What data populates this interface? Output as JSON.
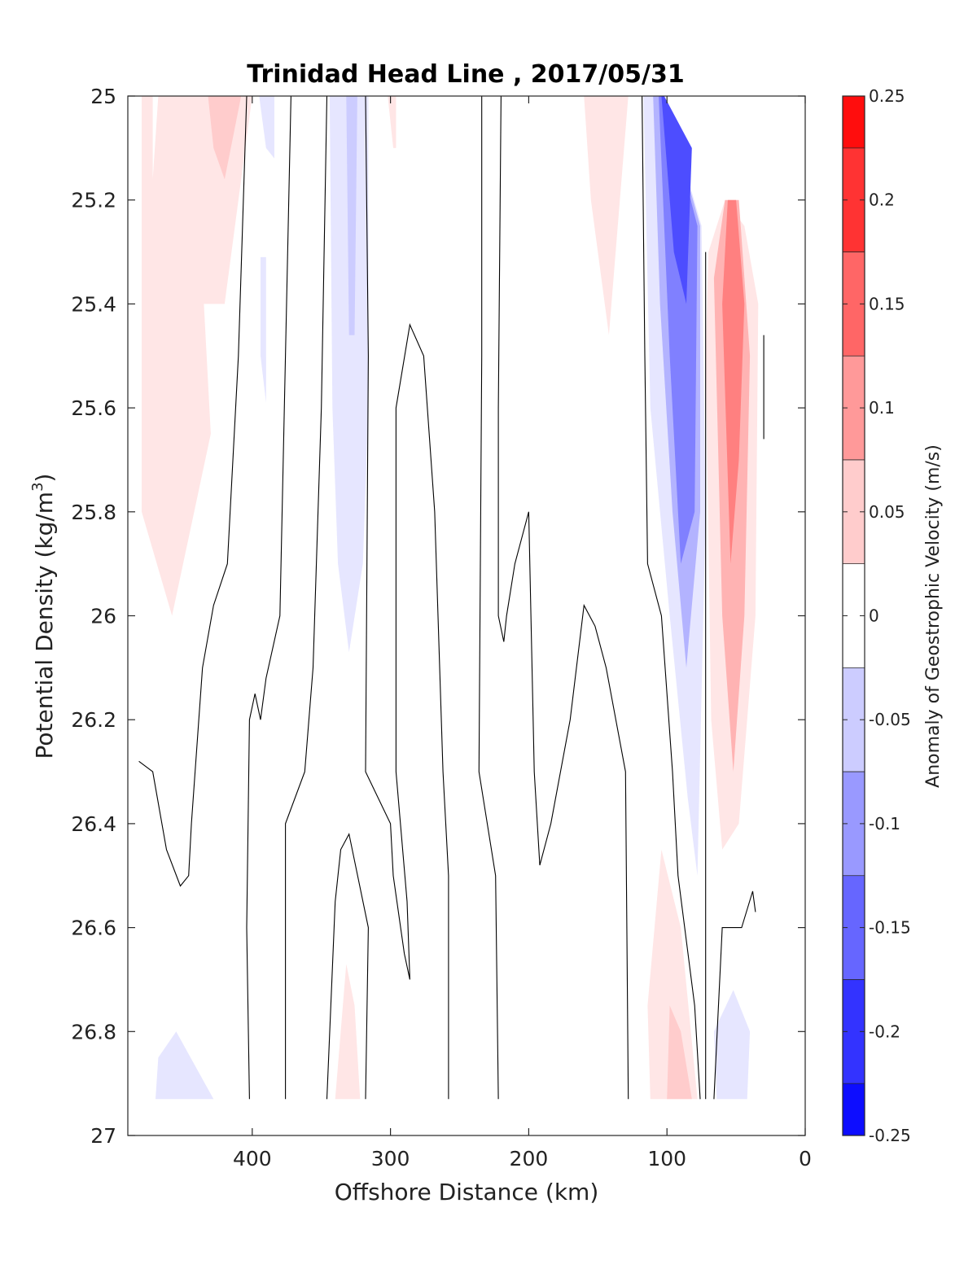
{
  "chart_data": {
    "type": "contour",
    "title": "Trinidad Head Line , 2017/05/31",
    "xlabel": "Offshore Distance (km)",
    "ylabel_main": "Potential Density (kg/m",
    "ylabel_sup": "3",
    "ylabel_close": ")",
    "colorbar_label": "Anomaly of Geostrophic Velocity (m/s)",
    "xlim": [
      490,
      0
    ],
    "ylim": [
      25,
      27
    ],
    "y_reversed": true,
    "x_ticks": [
      400,
      300,
      200,
      100,
      0
    ],
    "y_ticks": [
      25,
      25.2,
      25.4,
      25.6,
      25.8,
      26,
      26.2,
      26.4,
      26.6,
      26.8,
      27
    ],
    "colorbar_range": [
      -0.25,
      0.25
    ],
    "colorbar_levels": [
      -0.25,
      -0.225,
      -0.175,
      -0.125,
      -0.075,
      -0.025,
      0.025,
      0.075,
      0.125,
      0.175,
      0.225,
      0.25
    ],
    "colorbar_ticks": [
      0.25,
      0.2,
      0.15,
      0.1,
      0.05,
      0,
      -0.05,
      -0.1,
      -0.15,
      -0.2,
      -0.25
    ],
    "colors": {
      "positive": "#ff0000",
      "negative": "#0000ff",
      "zero": "#ffffff",
      "contour_line": "#000000"
    },
    "filled_regions": [
      {
        "value": 0.025,
        "points": [
          [
            480,
            25
          ],
          [
            472,
            25
          ],
          [
            472,
            25.16
          ],
          [
            468,
            25
          ],
          [
            400,
            25
          ],
          [
            420,
            25.4
          ],
          [
            435,
            25.4
          ],
          [
            430,
            25.65
          ],
          [
            458,
            26.0
          ],
          [
            480,
            25.8
          ]
        ]
      },
      {
        "value": 0.05,
        "points": [
          [
            432,
            25
          ],
          [
            408,
            25
          ],
          [
            420,
            25.16
          ],
          [
            428,
            25.1
          ]
        ]
      },
      {
        "value": -0.025,
        "points": [
          [
            395,
            25
          ],
          [
            384,
            25
          ],
          [
            384,
            25.12
          ],
          [
            390,
            25.1
          ]
        ]
      },
      {
        "value": -0.025,
        "points": [
          [
            394,
            25.31
          ],
          [
            390,
            25.31
          ],
          [
            390,
            25.59
          ],
          [
            394,
            25.5
          ]
        ]
      },
      {
        "value": -0.025,
        "points": [
          [
            344,
            25
          ],
          [
            316,
            25
          ],
          [
            316,
            25.6
          ],
          [
            320,
            25.9
          ],
          [
            330,
            26.07
          ],
          [
            338,
            25.9
          ],
          [
            342,
            25.6
          ]
        ]
      },
      {
        "value": -0.05,
        "points": [
          [
            332,
            25
          ],
          [
            324,
            25
          ],
          [
            326,
            25.46
          ],
          [
            330,
            25.46
          ]
        ]
      },
      {
        "value": 0.025,
        "points": [
          [
            302,
            25
          ],
          [
            296,
            25
          ],
          [
            296,
            25.1
          ],
          [
            298,
            25.1
          ]
        ]
      },
      {
        "value": 0.025,
        "points": [
          [
            160,
            25
          ],
          [
            128,
            25
          ],
          [
            142,
            25.46
          ],
          [
            150,
            25.3
          ],
          [
            155,
            25.2
          ]
        ]
      },
      {
        "value": 0.025,
        "points": [
          [
            44,
            25.25
          ],
          [
            58,
            25.2
          ],
          [
            70,
            25.3
          ],
          [
            72,
            25.5
          ],
          [
            68,
            26.2
          ],
          [
            60,
            26.45
          ],
          [
            48,
            26.4
          ],
          [
            36,
            26.0
          ],
          [
            34,
            25.4
          ]
        ]
      },
      {
        "value": 0.075,
        "points": [
          [
            48,
            25.2
          ],
          [
            58,
            25.2
          ],
          [
            66,
            25.35
          ],
          [
            60,
            26.0
          ],
          [
            52,
            26.3
          ],
          [
            44,
            26.0
          ],
          [
            40,
            25.5
          ]
        ]
      },
      {
        "value": 0.125,
        "points": [
          [
            50,
            25.2
          ],
          [
            56,
            25.2
          ],
          [
            60,
            25.4
          ],
          [
            54,
            25.9
          ],
          [
            48,
            25.7
          ],
          [
            44,
            25.4
          ]
        ]
      },
      {
        "value": -0.025,
        "points": [
          [
            117,
            25
          ],
          [
            102,
            25
          ],
          [
            75,
            25.25
          ],
          [
            72,
            25.8
          ],
          [
            78,
            26.5
          ],
          [
            85,
            26.35
          ],
          [
            98,
            26.0
          ],
          [
            112,
            25.6
          ]
        ]
      },
      {
        "value": -0.075,
        "points": [
          [
            110,
            25
          ],
          [
            102,
            25
          ],
          [
            76,
            25.25
          ],
          [
            76,
            25.8
          ],
          [
            86,
            26.1
          ],
          [
            96,
            25.8
          ],
          [
            105,
            25.4
          ]
        ]
      },
      {
        "value": -0.125,
        "points": [
          [
            106,
            25
          ],
          [
            102,
            25
          ],
          [
            78,
            25.25
          ],
          [
            80,
            25.8
          ],
          [
            90,
            25.9
          ],
          [
            98,
            25.5
          ]
        ]
      },
      {
        "value": -0.175,
        "points": [
          [
            104,
            25
          ],
          [
            102,
            25
          ],
          [
            82,
            25.1
          ],
          [
            86,
            25.4
          ],
          [
            95,
            25.3
          ]
        ]
      },
      {
        "value": 0.025,
        "points": [
          [
            112,
            26.93
          ],
          [
            78,
            26.93
          ],
          [
            90,
            26.6
          ],
          [
            104,
            26.45
          ],
          [
            114,
            26.75
          ]
        ]
      },
      {
        "value": 0.05,
        "points": [
          [
            100,
            26.93
          ],
          [
            82,
            26.93
          ],
          [
            90,
            26.8
          ],
          [
            98,
            26.75
          ]
        ]
      },
      {
        "value": 0.025,
        "points": [
          [
            340,
            26.93
          ],
          [
            322,
            26.93
          ],
          [
            326,
            26.75
          ],
          [
            332,
            26.67
          ]
        ]
      },
      {
        "value": -0.025,
        "points": [
          [
            470,
            26.93
          ],
          [
            428,
            26.93
          ],
          [
            455,
            26.8
          ],
          [
            468,
            26.85
          ]
        ]
      },
      {
        "value": -0.025,
        "points": [
          [
            64,
            26.93
          ],
          [
            42,
            26.93
          ],
          [
            40,
            26.8
          ],
          [
            52,
            26.72
          ],
          [
            66,
            26.8
          ]
        ]
      }
    ],
    "contour_lines": [
      [
        [
          482,
          26.28
        ],
        [
          472,
          26.3
        ],
        [
          462,
          26.45
        ],
        [
          452,
          26.52
        ],
        [
          446,
          26.5
        ],
        [
          444,
          26.4
        ],
        [
          436,
          26.1
        ],
        [
          428,
          25.98
        ],
        [
          418,
          25.9
        ],
        [
          410,
          25.5
        ],
        [
          404,
          25
        ]
      ],
      [
        [
          402,
          26.93
        ],
        [
          404,
          26.6
        ],
        [
          402,
          26.2
        ],
        [
          398,
          26.15
        ],
        [
          394,
          26.2
        ],
        [
          390,
          26.12
        ],
        [
          380,
          26.0
        ],
        [
          376,
          25.5
        ],
        [
          372,
          25
        ]
      ],
      [
        [
          376,
          26.93
        ],
        [
          376,
          26.8
        ],
        [
          376,
          26.4
        ],
        [
          362,
          26.3
        ],
        [
          356,
          26.1
        ],
        [
          350,
          25.6
        ],
        [
          346,
          25
        ]
      ],
      [
        [
          318,
          26.93
        ],
        [
          316,
          26.6
        ],
        [
          330,
          26.42
        ],
        [
          336,
          26.45
        ],
        [
          340,
          26.55
        ],
        [
          346,
          26.93
        ]
      ],
      [
        [
          318,
          25
        ],
        [
          316,
          25.5
        ],
        [
          318,
          26.3
        ],
        [
          300,
          26.4
        ],
        [
          298,
          26.5
        ],
        [
          290,
          26.65
        ],
        [
          286,
          26.7
        ],
        [
          288,
          26.55
        ],
        [
          296,
          26.3
        ],
        [
          296,
          25.6
        ],
        [
          286,
          25.44
        ],
        [
          276,
          25.5
        ],
        [
          268,
          25.8
        ],
        [
          262,
          26.3
        ],
        [
          258,
          26.5
        ],
        [
          258,
          26.93
        ]
      ],
      [
        [
          234,
          25
        ],
        [
          234,
          25.5
        ],
        [
          236,
          26.3
        ],
        [
          224,
          26.5
        ],
        [
          222,
          26.93
        ]
      ],
      [
        [
          220,
          25
        ],
        [
          222,
          25.6
        ],
        [
          222,
          26.0
        ],
        [
          218,
          26.05
        ],
        [
          216,
          26.0
        ],
        [
          210,
          25.9
        ],
        [
          200,
          25.8
        ],
        [
          196,
          26.3
        ],
        [
          192,
          26.48
        ],
        [
          184,
          26.4
        ],
        [
          170,
          26.2
        ],
        [
          160,
          25.98
        ],
        [
          152,
          26.02
        ],
        [
          144,
          26.1
        ],
        [
          130,
          26.3
        ],
        [
          128,
          26.93
        ]
      ],
      [
        [
          118,
          25
        ],
        [
          116,
          25.5
        ],
        [
          114,
          25.9
        ],
        [
          104,
          26.0
        ],
        [
          96,
          26.3
        ],
        [
          92,
          26.5
        ],
        [
          80,
          26.75
        ],
        [
          76,
          26.93
        ]
      ],
      [
        [
          72,
          25.3
        ],
        [
          72,
          26.93
        ]
      ],
      [
        [
          66,
          26.93
        ],
        [
          60,
          26.6
        ],
        [
          46,
          26.6
        ],
        [
          38,
          26.53
        ],
        [
          36,
          26.57
        ]
      ],
      [
        [
          30,
          25.46
        ],
        [
          30,
          25.66
        ]
      ]
    ]
  }
}
